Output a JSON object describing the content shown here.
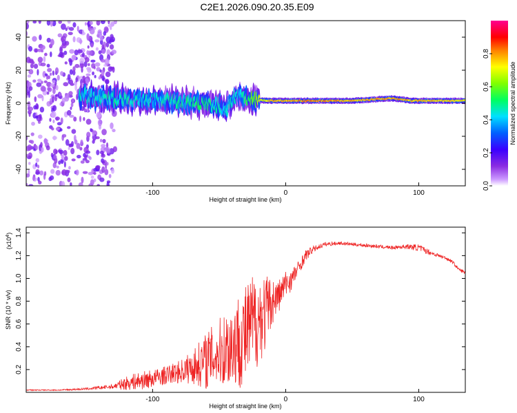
{
  "title": "C2E1.2026.090.20.35.E09",
  "colorbar": {
    "label": "Normalized spectral amplitude",
    "ticks": [
      "0.0",
      "0.2",
      "0.4",
      "0.6",
      "0.8"
    ],
    "tick_values": [
      0.0,
      0.2,
      0.4,
      0.6,
      0.8
    ],
    "range": [
      0,
      1
    ]
  },
  "chart_data": [
    {
      "type": "heatmap",
      "title": "C2E1.2026.090.20.35.E09",
      "xlabel": "Height of straight line (km)",
      "ylabel": "Frequency (Hz)",
      "xlim": [
        -195,
        135
      ],
      "ylim": [
        -50,
        50
      ],
      "xticks": [
        -100,
        0,
        100
      ],
      "xtick_labels": [
        "-100",
        "0",
        "100"
      ],
      "yticks": [
        -40,
        -20,
        0,
        20,
        40
      ],
      "ytick_labels": [
        "-40",
        "-20",
        "0",
        "20",
        "40"
      ],
      "colorscale": "rainbow (purple=0 to magenta=1)",
      "description_series": [
        {
          "name": "noise band (scattered purple)",
          "x_range": [
            -195,
            -128
          ],
          "freq_range": [
            -50,
            50
          ],
          "amplitude": 0.1
        },
        {
          "name": "main signal",
          "x": [
            -155,
            -130,
            -100,
            -80,
            -60,
            -45,
            -35,
            -25,
            -10,
            0,
            20,
            50,
            80,
            95,
            110,
            135
          ],
          "freq_center": [
            4,
            3,
            2,
            1,
            0,
            -3,
            5,
            2,
            1.5,
            1.5,
            1.5,
            1.5,
            3,
            1.5,
            1.5,
            1.5
          ],
          "amplitude": [
            0.5,
            0.55,
            0.5,
            0.55,
            0.6,
            0.5,
            0.5,
            0.7,
            0.9,
            0.9,
            0.95,
            0.9,
            0.92,
            0.9,
            0.9,
            0.85
          ]
        }
      ]
    },
    {
      "type": "line",
      "xlabel": "Height of straight line (km)",
      "ylabel": "SNR (10 * v/v)",
      "yscale_label": "(x10",
      "yscale_exp": "4",
      "yscale_close": ")",
      "xlim": [
        -195,
        135
      ],
      "ylim": [
        0,
        1.45
      ],
      "xticks": [
        -100,
        0,
        100
      ],
      "xtick_labels": [
        "-100",
        "0",
        "100"
      ],
      "yticks": [
        0.2,
        0.4,
        0.6,
        0.8,
        1.0,
        1.2,
        1.4
      ],
      "ytick_labels": [
        "0.2",
        "0.4",
        "0.6",
        "0.8",
        "1.0",
        "1.2",
        "1.4"
      ],
      "series": [
        {
          "name": "SNR",
          "color": "#ee2222",
          "x": [
            -195,
            -170,
            -150,
            -130,
            -120,
            -110,
            -100,
            -90,
            -80,
            -70,
            -60,
            -50,
            -40,
            -30,
            -25,
            -20,
            -15,
            -10,
            -5,
            0,
            5,
            10,
            15,
            20,
            25,
            30,
            40,
            50,
            60,
            70,
            80,
            90,
            100,
            110,
            120,
            125,
            130,
            135
          ],
          "y": [
            0.02,
            0.02,
            0.03,
            0.05,
            0.08,
            0.1,
            0.12,
            0.15,
            0.18,
            0.22,
            0.28,
            0.35,
            0.42,
            0.5,
            0.6,
            0.65,
            0.7,
            0.8,
            0.85,
            0.95,
            1.0,
            1.1,
            1.2,
            1.25,
            1.28,
            1.3,
            1.31,
            1.3,
            1.29,
            1.28,
            1.27,
            1.28,
            1.27,
            1.22,
            1.18,
            1.15,
            1.08,
            1.05
          ],
          "noise_amplitude": [
            0.005,
            0.005,
            0.01,
            0.02,
            0.06,
            0.08,
            0.08,
            0.08,
            0.1,
            0.15,
            0.25,
            0.3,
            0.4,
            0.45,
            0.45,
            0.4,
            0.35,
            0.2,
            0.15,
            0.12,
            0.1,
            0.06,
            0.05,
            0.03,
            0.02,
            0.02,
            0.015,
            0.015,
            0.015,
            0.015,
            0.015,
            0.02,
            0.03,
            0.02,
            0.015,
            0.015,
            0.015,
            0.015
          ]
        }
      ]
    }
  ]
}
